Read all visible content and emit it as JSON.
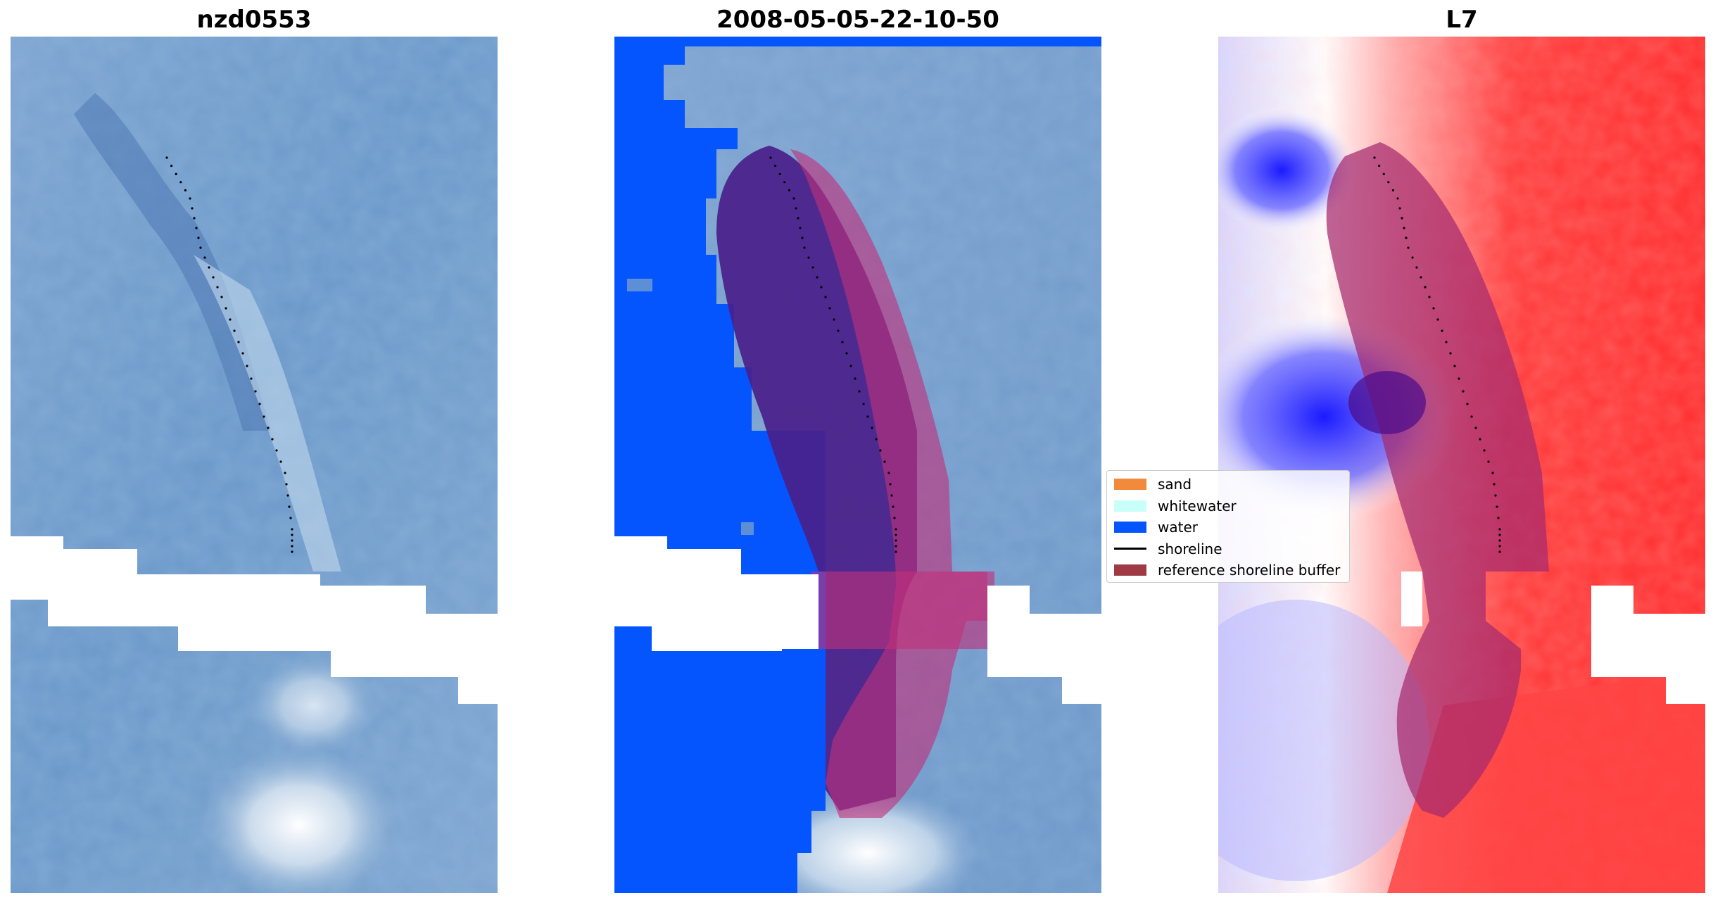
{
  "panels": [
    {
      "title": "nzd0553",
      "layer": "rgb-composite"
    },
    {
      "title": "2008-05-05-22-10-50",
      "layer": "classification-overlay"
    },
    {
      "title": "L7",
      "layer": "index-diverging"
    }
  ],
  "legend": {
    "items": [
      {
        "label": "sand",
        "kind": "patch",
        "color": "#f28a3c"
      },
      {
        "label": "whitewater",
        "kind": "patch",
        "color": "#c8fff8"
      },
      {
        "label": "water",
        "kind": "patch",
        "color": "#0555ff"
      },
      {
        "label": "shoreline",
        "kind": "line",
        "color": "#000000"
      },
      {
        "label": "reference shoreline buffer",
        "kind": "patch",
        "color": "#9e3a44"
      }
    ]
  },
  "colors": {
    "water_class": "#0555ff",
    "land_reflectance": "#5f8fc6",
    "buffer_overlay": "#c0307a",
    "index_positive": "#ff2020",
    "index_negative": "#2020ff",
    "nodata": "#ffffff",
    "shoreline_points": "#000000"
  }
}
